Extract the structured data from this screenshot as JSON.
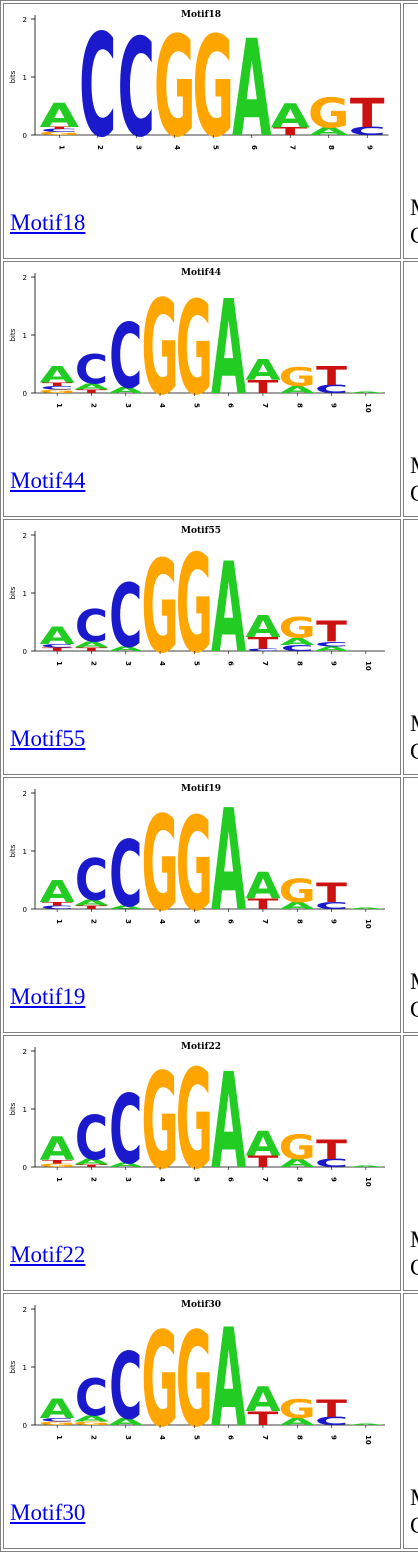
{
  "colors": {
    "A": "#22cc22",
    "C": "#1a1acc",
    "G": "#ffa500",
    "T": "#cc1111",
    "link": "#0000ee"
  },
  "axis_label": "bits",
  "motifs": [
    {
      "name": "Motif18",
      "positions": [
        "1",
        "2",
        "3",
        "4",
        "5",
        "6",
        "7",
        "8",
        "9"
      ],
      "side_line1": "M",
      "side_line2": "C"
    },
    {
      "name": "Motif44",
      "positions": [
        "1",
        "2",
        "3",
        "4",
        "5",
        "6",
        "7",
        "8",
        "9",
        "10"
      ],
      "side_line1": "M",
      "side_line2": "C"
    },
    {
      "name": "Motif55",
      "positions": [
        "1",
        "2",
        "3",
        "4",
        "5",
        "6",
        "7",
        "8",
        "9",
        "10"
      ],
      "side_line1": "M",
      "side_line2": "C"
    },
    {
      "name": "Motif19",
      "positions": [
        "1",
        "2",
        "3",
        "4",
        "5",
        "6",
        "7",
        "8",
        "9",
        "10"
      ],
      "side_line1": "M",
      "side_line2": "C"
    },
    {
      "name": "Motif22",
      "positions": [
        "1",
        "2",
        "3",
        "4",
        "5",
        "6",
        "7",
        "8",
        "9",
        "10"
      ],
      "side_line1": "M",
      "side_line2": "C"
    },
    {
      "name": "Motif30",
      "positions": [
        "1",
        "2",
        "3",
        "4",
        "5",
        "6",
        "7",
        "8",
        "9",
        "10"
      ],
      "side_line1": "M",
      "side_line2": "C"
    }
  ]
}
